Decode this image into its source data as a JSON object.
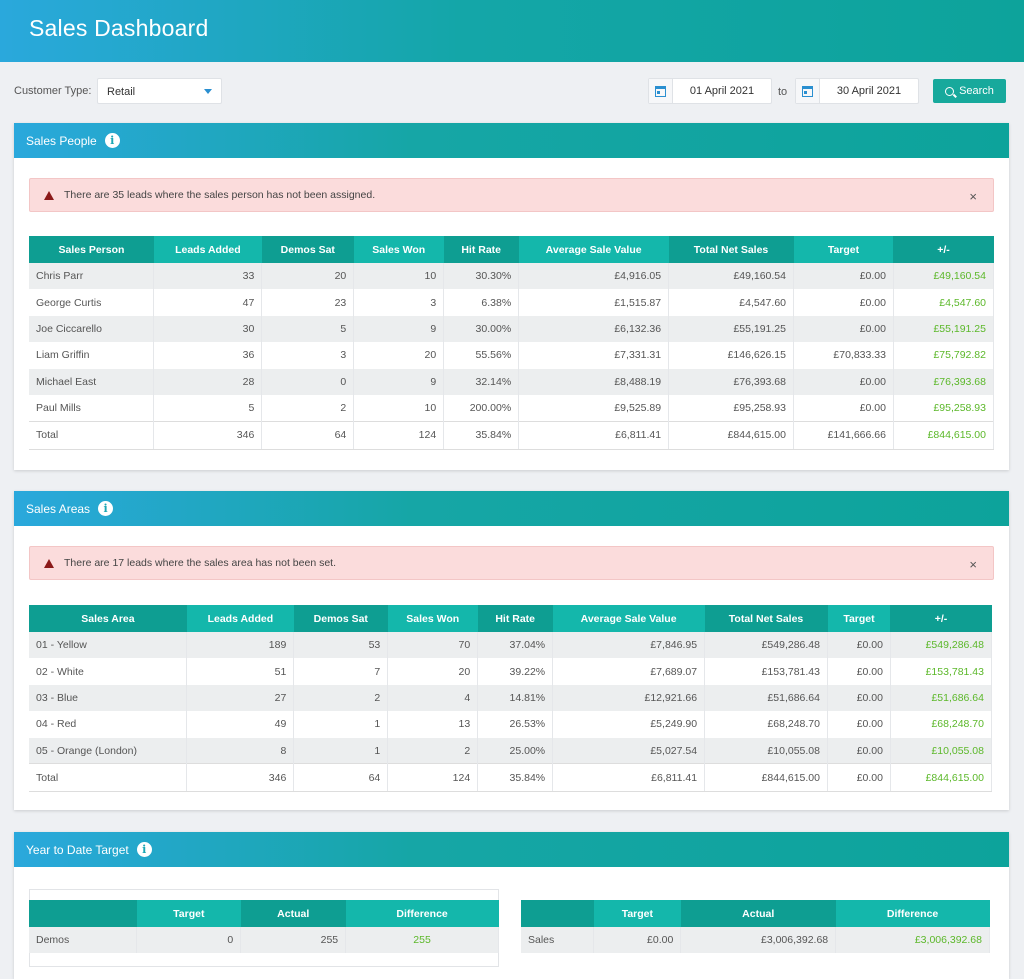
{
  "header": {
    "title": "Sales Dashboard"
  },
  "filters": {
    "customer_type_label": "Customer Type:",
    "customer_type_value": "Retail",
    "date_from": "01 April 2021",
    "to_label": "to",
    "date_to": "30 April 2021",
    "search_label": "Search"
  },
  "sales_people": {
    "title": "Sales People",
    "alert": "There are 35 leads where the sales person has not been assigned.",
    "close": "×",
    "columns": [
      "Sales Person",
      "Leads Added",
      "Demos Sat",
      "Sales Won",
      "Hit Rate",
      "Average Sale Value",
      "Total Net Sales",
      "Target",
      "+/-"
    ],
    "rows": [
      [
        "Chris Parr",
        "33",
        "20",
        "10",
        "30.30%",
        "£4,916.05",
        "£49,160.54",
        "£0.00",
        "£49,160.54"
      ],
      [
        "George Curtis",
        "47",
        "23",
        "3",
        "6.38%",
        "£1,515.87",
        "£4,547.60",
        "£0.00",
        "£4,547.60"
      ],
      [
        "Joe Ciccarello",
        "30",
        "5",
        "9",
        "30.00%",
        "£6,132.36",
        "£55,191.25",
        "£0.00",
        "£55,191.25"
      ],
      [
        "Liam Griffin",
        "36",
        "3",
        "20",
        "55.56%",
        "£7,331.31",
        "£146,626.15",
        "£70,833.33",
        "£75,792.82"
      ],
      [
        "Michael East",
        "28",
        "0",
        "9",
        "32.14%",
        "£8,488.19",
        "£76,393.68",
        "£0.00",
        "£76,393.68"
      ],
      [
        "Paul Mills",
        "5",
        "2",
        "10",
        "200.00%",
        "£9,525.89",
        "£95,258.93",
        "£0.00",
        "£95,258.93"
      ]
    ],
    "total": [
      "Total",
      "346",
      "64",
      "124",
      "35.84%",
      "£6,811.41",
      "£844,615.00",
      "£141,666.66",
      "£844,615.00"
    ]
  },
  "sales_areas": {
    "title": "Sales Areas",
    "alert": "There are 17 leads where the sales area has not been set.",
    "close": "×",
    "columns": [
      "Sales Area",
      "Leads Added",
      "Demos Sat",
      "Sales Won",
      "Hit Rate",
      "Average Sale Value",
      "Total Net Sales",
      "Target",
      "+/-"
    ],
    "rows": [
      [
        "01 - Yellow",
        "189",
        "53",
        "70",
        "37.04%",
        "£7,846.95",
        "£549,286.48",
        "£0.00",
        "£549,286.48"
      ],
      [
        "02 - White",
        "51",
        "7",
        "20",
        "39.22%",
        "£7,689.07",
        "£153,781.43",
        "£0.00",
        "£153,781.43"
      ],
      [
        "03 - Blue",
        "27",
        "2",
        "4",
        "14.81%",
        "£12,921.66",
        "£51,686.64",
        "£0.00",
        "£51,686.64"
      ],
      [
        "04 - Red",
        "49",
        "1",
        "13",
        "26.53%",
        "£5,249.90",
        "£68,248.70",
        "£0.00",
        "£68,248.70"
      ],
      [
        "05 - Orange (London)",
        "8",
        "1",
        "2",
        "25.00%",
        "£5,027.54",
        "£10,055.08",
        "£0.00",
        "£10,055.08"
      ]
    ],
    "total": [
      "Total",
      "346",
      "64",
      "124",
      "35.84%",
      "£6,811.41",
      "£844,615.00",
      "£0.00",
      "£844,615.00"
    ]
  },
  "ytd": {
    "title": "Year to Date Target",
    "columns": [
      "",
      "Target",
      "Actual",
      "Difference"
    ],
    "demos": [
      "Demos",
      "0",
      "255",
      "255"
    ],
    "sales": [
      "Sales",
      "£0.00",
      "£3,006,392.68",
      "£3,006,392.68"
    ]
  },
  "colors": {
    "accent": "#17a99c",
    "header_blue": "#2aa8dc",
    "positive": "#5cb82a",
    "alert_bg": "#fbdcdc"
  }
}
